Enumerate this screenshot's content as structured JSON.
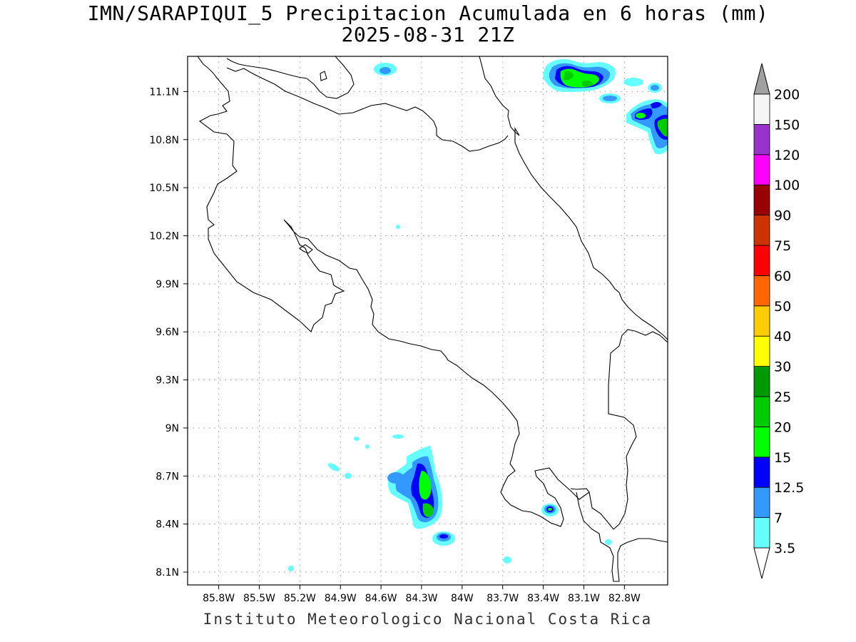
{
  "title": "IMN/SARAPIQUI_5 Precipitacion Acumulada en 6 horas (mm)",
  "subtitle": "2025-08-31 21Z",
  "footer": "Instituto Meteorologico Nacional Costa Rica",
  "map": {
    "lon_range": [
      -86.03,
      -82.48
    ],
    "lat_range": [
      8.02,
      11.32
    ],
    "lon_ticks": [
      {
        "v": -85.8,
        "label": "85.8W"
      },
      {
        "v": -85.5,
        "label": "85.5W"
      },
      {
        "v": -85.2,
        "label": "85.2W"
      },
      {
        "v": -84.9,
        "label": "84.9W"
      },
      {
        "v": -84.6,
        "label": "84.6W"
      },
      {
        "v": -84.3,
        "label": "84.3W"
      },
      {
        "v": -84.0,
        "label": "84W"
      },
      {
        "v": -83.7,
        "label": "83.7W"
      },
      {
        "v": -83.4,
        "label": "83.4W"
      },
      {
        "v": -83.1,
        "label": "83.1W"
      },
      {
        "v": -82.8,
        "label": "82.8W"
      }
    ],
    "lat_ticks": [
      {
        "v": 8.1,
        "label": "8.1N"
      },
      {
        "v": 8.4,
        "label": "8.4N"
      },
      {
        "v": 8.7,
        "label": "8.7N"
      },
      {
        "v": 9.0,
        "label": "9N"
      },
      {
        "v": 9.3,
        "label": "9.3N"
      },
      {
        "v": 9.6,
        "label": "9.6N"
      },
      {
        "v": 9.9,
        "label": "9.9N"
      },
      {
        "v": 10.2,
        "label": "10.2N"
      },
      {
        "v": 10.5,
        "label": "10.5N"
      },
      {
        "v": 10.8,
        "label": "10.8N"
      },
      {
        "v": 11.1,
        "label": "11.1N"
      }
    ],
    "grid": "dotted"
  },
  "colorbar": {
    "levels": [
      "3.5",
      "7",
      "12.5",
      "15",
      "20",
      "25",
      "30",
      "40",
      "50",
      "60",
      "75",
      "90",
      "100",
      "120",
      "150",
      "200"
    ],
    "colors": [
      "#66ffff",
      "#3399ff",
      "#0000ff",
      "#00ff00",
      "#00cc00",
      "#009900",
      "#ffff00",
      "#ffcc00",
      "#ff6600",
      "#ff0000",
      "#cc3300",
      "#990000",
      "#ff00ff",
      "#9933cc",
      "#f5f5f5"
    ],
    "over_color": "#a0a0a0",
    "under_color": "#ffffff"
  },
  "precip_cells": [
    {
      "lon": -84.31,
      "lat": 8.62,
      "max_class": "20"
    },
    {
      "lon": -84.28,
      "lat": 8.46,
      "max_class": "20"
    },
    {
      "lon": -84.16,
      "lat": 8.3,
      "max_class": "12.5"
    },
    {
      "lon": -83.38,
      "lat": 8.47,
      "max_class": "20"
    },
    {
      "lon": -83.26,
      "lat": 11.16,
      "max_class": "20"
    },
    {
      "lon": -82.55,
      "lat": 10.88,
      "max_class": "20"
    },
    {
      "lon": -82.68,
      "lat": 10.96,
      "max_class": "20"
    }
  ]
}
